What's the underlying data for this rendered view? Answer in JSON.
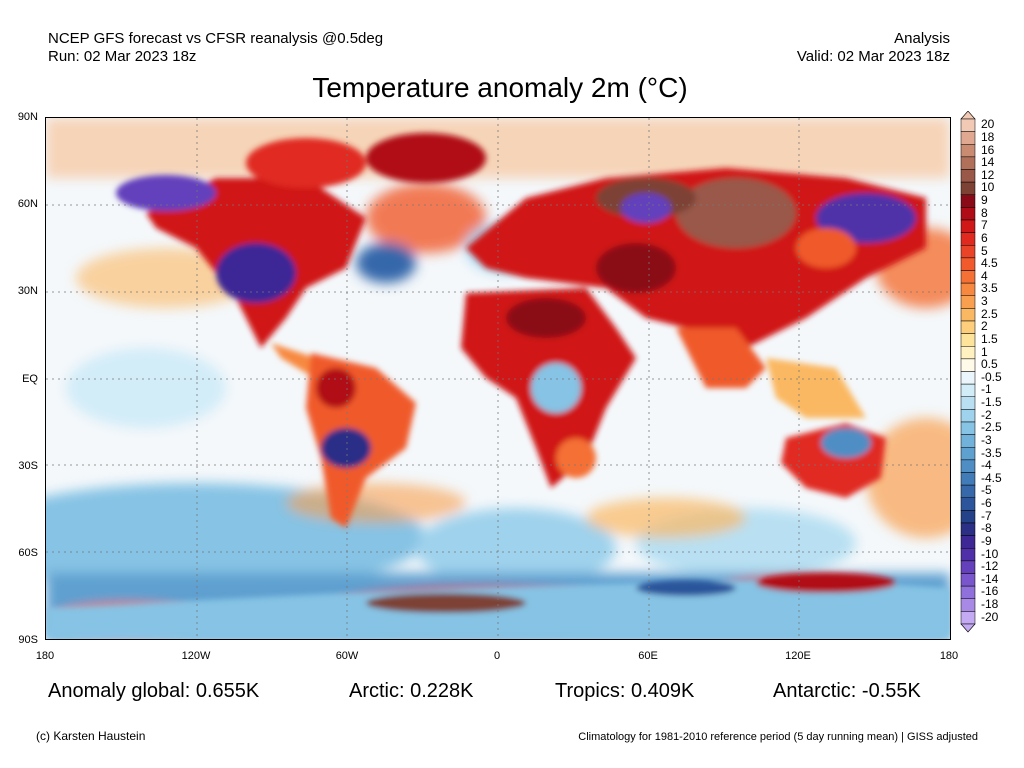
{
  "header": {
    "left_line1": "NCEP GFS forecast vs CFSR reanalysis @0.5deg",
    "left_line2": "Run: 02 Mar 2023 18z",
    "right_line1": "Analysis",
    "right_line2": "Valid: 02 Mar 2023 18z"
  },
  "title": "Temperature anomaly 2m (°C)",
  "axes": {
    "lat_labels": [
      "90N",
      "60N",
      "30N",
      "EQ",
      "30S",
      "60S",
      "90S"
    ],
    "lon_labels": [
      "180",
      "120W",
      "60W",
      "0",
      "60E",
      "120E",
      "180"
    ]
  },
  "colorbar": {
    "labels": [
      "20",
      "18",
      "16",
      "14",
      "12",
      "10",
      "9",
      "8",
      "7",
      "6",
      "5",
      "4.5",
      "4",
      "3.5",
      "3",
      "2.5",
      "2",
      "1.5",
      "1",
      "0.5",
      "-0.5",
      "-1",
      "-1.5",
      "-2",
      "-2.5",
      "-3",
      "-3.5",
      "-4",
      "-4.5",
      "-5",
      "-6",
      "-7",
      "-8",
      "-9",
      "-10",
      "-12",
      "-14",
      "-16",
      "-18",
      "-20"
    ],
    "colors": [
      "#f2c9b5",
      "#e0a890",
      "#c98c72",
      "#b0705a",
      "#995848",
      "#7d4234",
      "#8a0a18",
      "#b00c18",
      "#d01818",
      "#e02a20",
      "#ea4428",
      "#f05a2c",
      "#f47034",
      "#f78840",
      "#f9a050",
      "#fbb862",
      "#fdcf7c",
      "#fee39a",
      "#fff2c0",
      "#fffbe8",
      "#eaf6fc",
      "#d2ecf8",
      "#b8e0f2",
      "#9fd2ec",
      "#86c3e4",
      "#70b2da",
      "#5ea0d0",
      "#4f8ec4",
      "#427cb8",
      "#3668aa",
      "#2c559b",
      "#23428a",
      "#2c2f86",
      "#3d2896",
      "#5030a8",
      "#6440bc",
      "#7a56cc",
      "#9070da",
      "#a88ae6",
      "#c4aaf2"
    ]
  },
  "stats": {
    "global": "Anomaly global: 0.655K",
    "arctic": "Arctic: 0.228K",
    "tropics": "Tropics: 0.409K",
    "antarctic": "Antarctic: -0.55K"
  },
  "footer": {
    "credit": "(c) Karsten Haustein",
    "climatology": "Climatology for 1981-2010 reference period (5 day running mean) | GISS adjusted"
  }
}
